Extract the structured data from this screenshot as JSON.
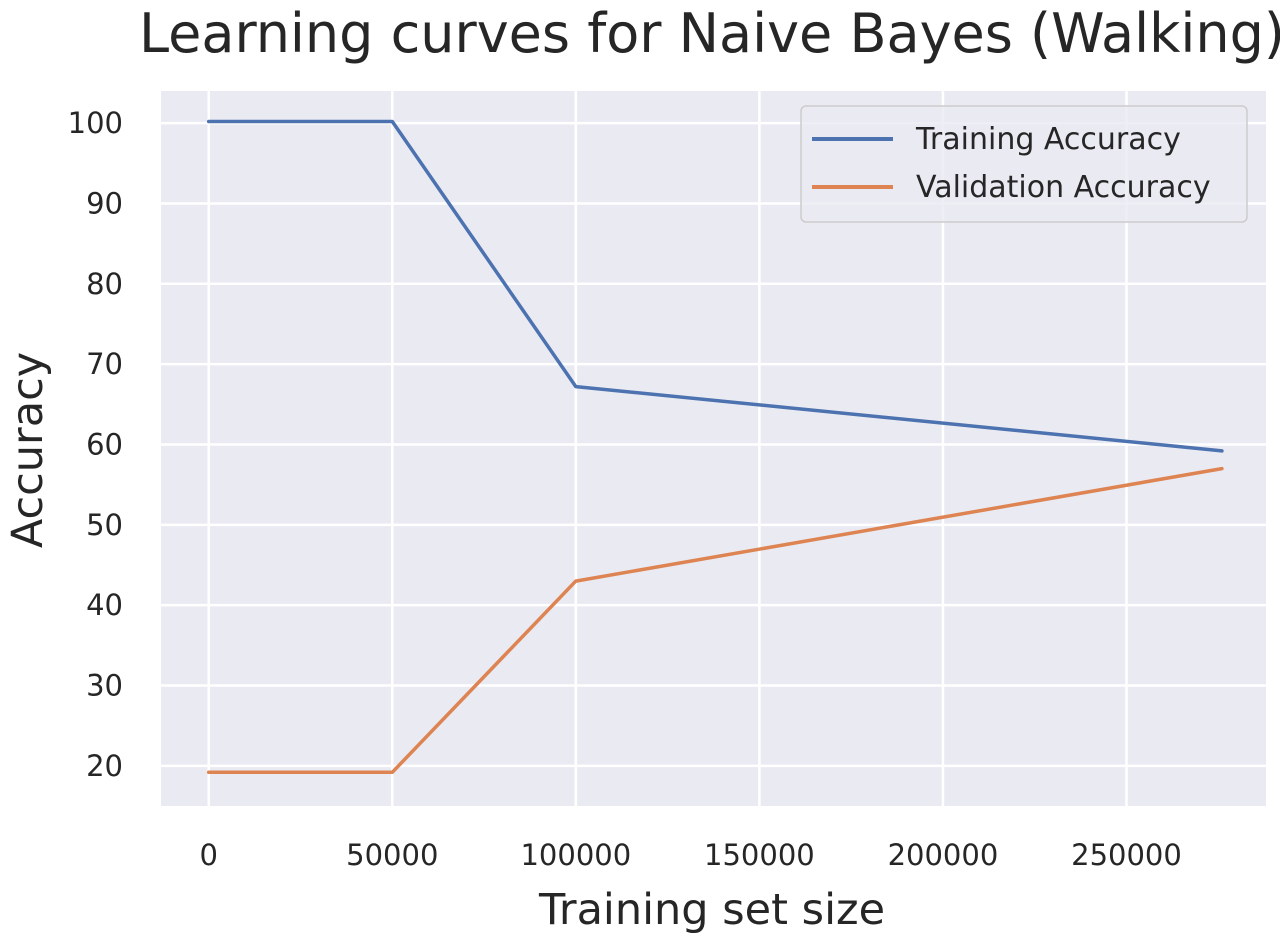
{
  "chart_data": {
    "type": "line",
    "title": "Learning curves for Naive Bayes (Walking)",
    "xlabel": "Training set size",
    "ylabel": "Accuracy",
    "xlim": [
      -13000,
      288000
    ],
    "ylim": [
      15,
      104
    ],
    "x_ticks": [
      0,
      50000,
      100000,
      150000,
      200000,
      250000
    ],
    "y_ticks": [
      20,
      30,
      40,
      50,
      60,
      70,
      80,
      90,
      100
    ],
    "grid": true,
    "legend_position": "top-right",
    "series": [
      {
        "name": "Training Accuracy",
        "color": "#4c72b0",
        "x": [
          0,
          50000,
          100000,
          276000
        ],
        "y": [
          100.2,
          100.2,
          67.2,
          59.2
        ]
      },
      {
        "name": "Validation Accuracy",
        "color": "#dd8452",
        "x": [
          0,
          50000,
          100000,
          276000
        ],
        "y": [
          19.2,
          19.2,
          43.0,
          57.0
        ]
      }
    ]
  }
}
